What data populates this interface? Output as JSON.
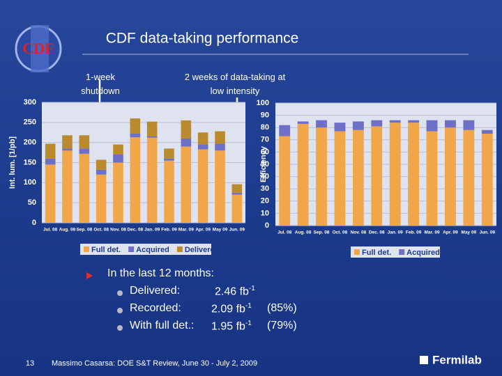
{
  "slide": {
    "logo": "CDF",
    "title": "CDF data-taking performance",
    "annotations": [
      "1-week shutdown",
      "2 weeks of data-taking at low intensity"
    ],
    "summary": {
      "heading": "In the last 12 months:",
      "items": [
        {
          "label": "Delivered:",
          "value": "2.46 fb",
          "exponent": "-1"
        },
        {
          "label": "Recorded:",
          "value": "2.09 fb",
          "exponent": "-1",
          "percent": "(85%)"
        },
        {
          "label": "With full det.:",
          "value": "1.95 fb",
          "exponent": "-1",
          "percent": "(79%)"
        }
      ]
    },
    "page_number": "13",
    "footer": "Massimo Casarsa: DOE S&T Review, June 30 - July 2, 2009",
    "brand": "Fermilab"
  },
  "chart_data": [
    {
      "type": "stacked_bar",
      "ylabel": "Int. lum. [1/pb]",
      "categories": [
        "Jul. 08",
        "Aug. 08",
        "Sep. 08",
        "Oct. 08",
        "Nov. 08",
        "Dec. 08",
        "Jan. 09",
        "Feb. 09",
        "Mar. 09",
        "Apr. 09",
        "May 09",
        "Jun. 09"
      ],
      "series": [
        {
          "name": "Full det.",
          "color": "#f2a64a",
          "values": [
            145,
            180,
            172,
            120,
            150,
            213,
            212,
            155,
            190,
            183,
            180,
            70
          ]
        },
        {
          "name": "Acquired",
          "color": "#6d70c6",
          "values": [
            15,
            5,
            13,
            12,
            20,
            9,
            3,
            5,
            20,
            12,
            17,
            5
          ]
        },
        {
          "name": "Delivered",
          "color": "#b98a2e",
          "values": [
            37,
            33,
            33,
            25,
            25,
            38,
            37,
            25,
            45,
            30,
            31,
            21
          ]
        }
      ],
      "ylim": [
        0,
        300
      ],
      "yticks": [
        0,
        50,
        100,
        150,
        200,
        250,
        300
      ],
      "grid": true
    },
    {
      "type": "stacked_bar",
      "ylabel": "Efficiency",
      "categories": [
        "Jul. 08",
        "Aug. 08",
        "Sep. 08",
        "Oct. 08",
        "Nov. 08",
        "Dec. 08",
        "Jan. 09",
        "Feb. 09",
        "Mar. 09",
        "Apr. 09",
        "May 09",
        "Jun. 09"
      ],
      "series": [
        {
          "name": "Full det.",
          "color": "#f2a64a",
          "values": [
            73,
            83,
            80,
            77,
            78,
            81,
            84,
            84,
            77,
            80,
            78,
            75
          ]
        },
        {
          "name": "Acquired",
          "color": "#6d70c6",
          "values": [
            9,
            2,
            6,
            7,
            7,
            5,
            2,
            2,
            9,
            6,
            8,
            3
          ]
        }
      ],
      "ylim": [
        0,
        100
      ],
      "yticks": [
        0,
        10,
        20,
        30,
        40,
        50,
        60,
        70,
        80,
        90,
        100
      ],
      "grid": true
    }
  ]
}
